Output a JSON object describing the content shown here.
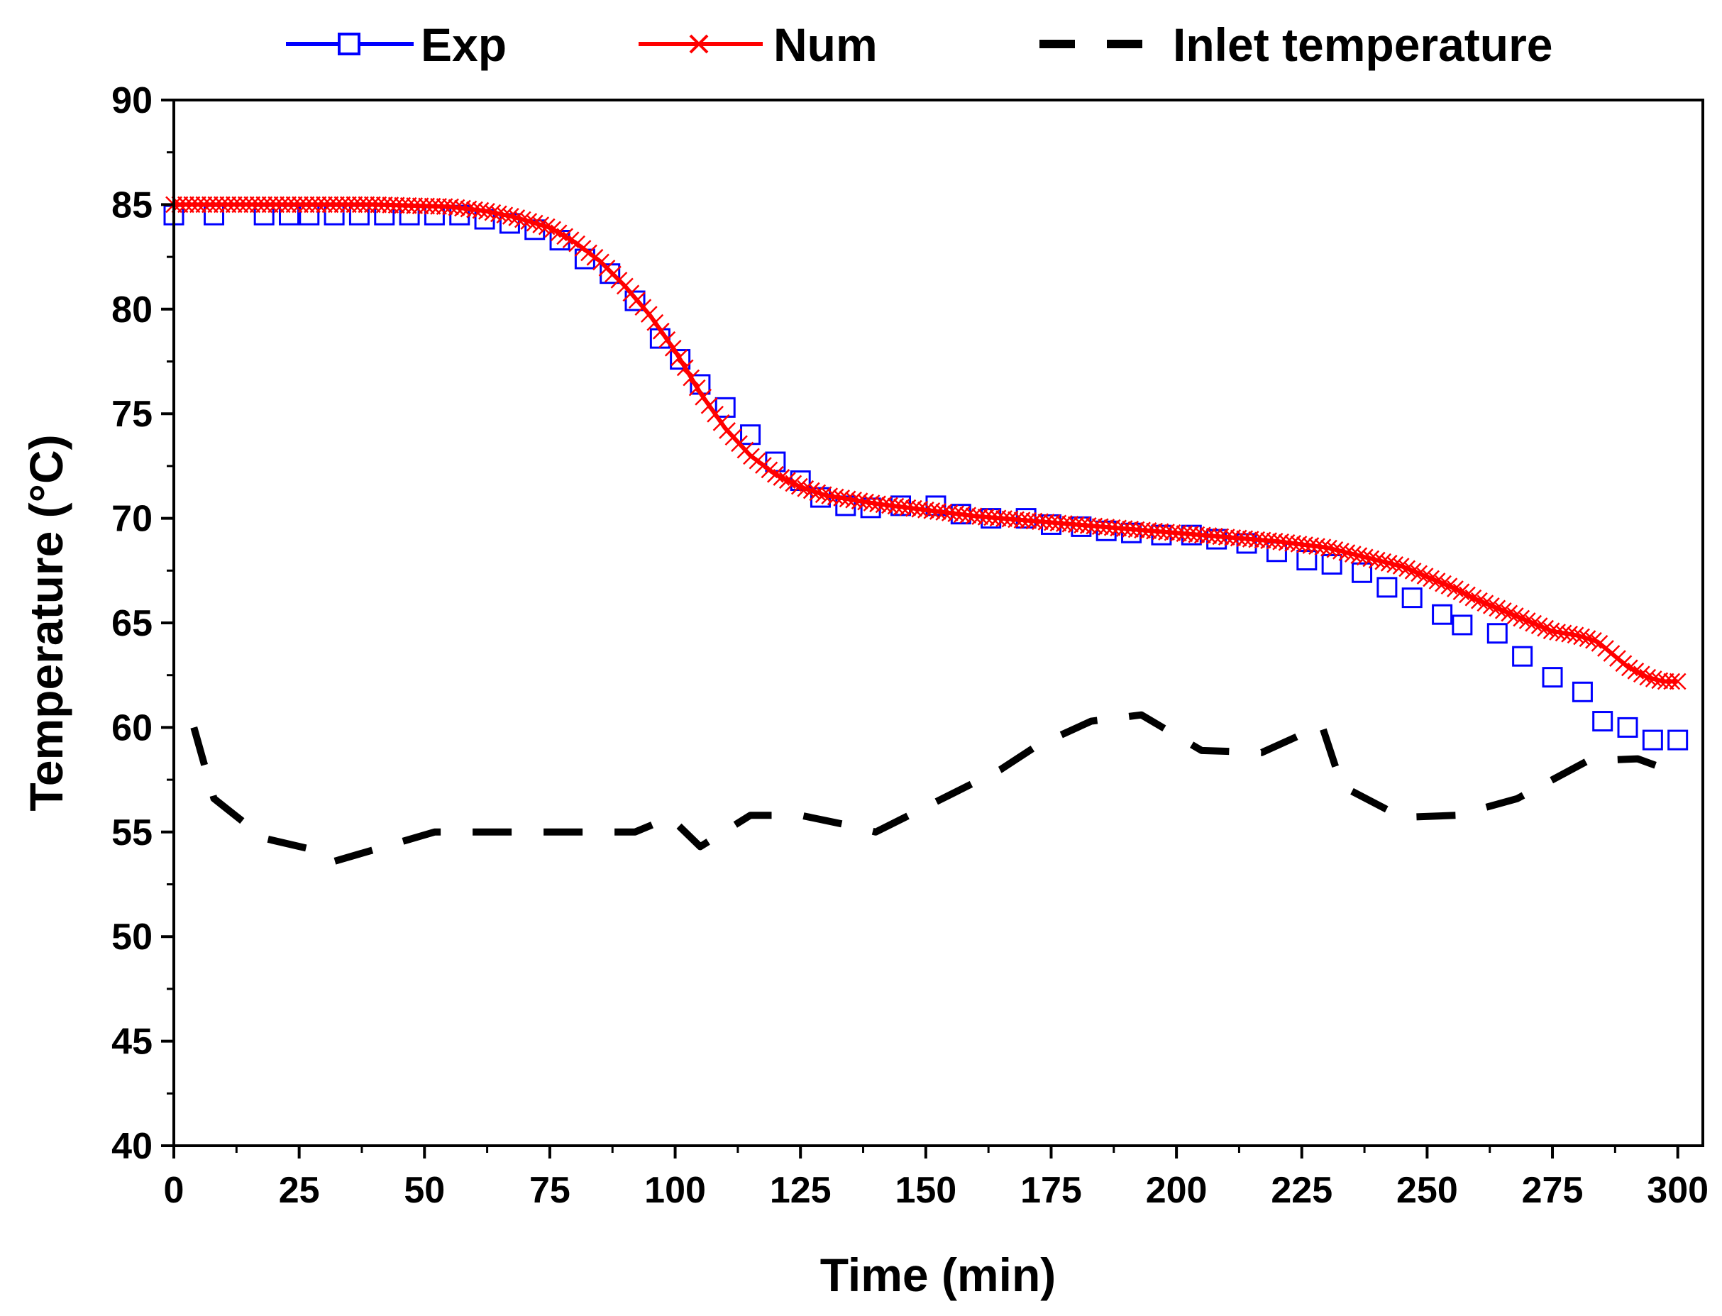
{
  "chart_data": {
    "type": "line",
    "title": "",
    "xlabel": "Time (min)",
    "ylabel": "Temperature (°C)",
    "xlim": [
      0,
      305
    ],
    "ylim": [
      40,
      90
    ],
    "xticks": [
      0,
      25,
      50,
      75,
      100,
      125,
      150,
      175,
      200,
      225,
      250,
      275,
      300
    ],
    "yticks": [
      40,
      45,
      50,
      55,
      60,
      65,
      70,
      75,
      80,
      85,
      90
    ],
    "grid": false,
    "legend_position": "top",
    "colors": {
      "exp": "#0000ff",
      "num": "#ff0000",
      "inlet": "#000000"
    },
    "series": [
      {
        "name": "Exp",
        "style": "markers-open-square",
        "x": [
          0,
          8,
          18,
          23,
          27,
          32,
          37,
          42,
          47,
          52,
          57,
          62,
          67,
          72,
          77,
          82,
          87,
          92,
          97,
          101,
          105,
          110,
          115,
          120,
          125,
          129,
          134,
          139,
          145,
          152,
          157,
          163,
          170,
          175,
          181,
          186,
          191,
          197,
          203,
          208,
          214,
          220,
          226,
          231,
          237,
          242,
          247,
          253,
          257,
          264,
          269,
          275,
          281,
          285,
          290,
          295,
          300
        ],
        "y": [
          84.5,
          84.5,
          84.5,
          84.5,
          84.5,
          84.5,
          84.5,
          84.5,
          84.5,
          84.5,
          84.5,
          84.3,
          84.1,
          83.8,
          83.3,
          82.4,
          81.7,
          80.4,
          78.6,
          77.6,
          76.4,
          75.3,
          74.0,
          72.7,
          71.8,
          71.0,
          70.6,
          70.5,
          70.6,
          70.6,
          70.2,
          70.0,
          70.0,
          69.7,
          69.6,
          69.4,
          69.3,
          69.2,
          69.2,
          69.0,
          68.8,
          68.4,
          68.0,
          67.8,
          67.4,
          66.7,
          66.2,
          65.4,
          64.9,
          64.5,
          63.4,
          62.4,
          61.7,
          60.3,
          60.0,
          59.4,
          59.4
        ]
      },
      {
        "name": "Num",
        "style": "line-with-x-markers",
        "x": [
          0,
          20,
          40,
          55,
          62,
          68,
          75,
          80,
          85,
          90,
          95,
          100,
          105,
          110,
          115,
          120,
          125,
          130,
          140,
          150,
          160,
          170,
          180,
          190,
          200,
          210,
          220,
          230,
          240,
          245,
          250,
          255,
          260,
          265,
          270,
          275,
          280,
          284,
          287,
          290,
          294,
          297,
          300
        ],
        "y": [
          85.0,
          85.0,
          85.0,
          84.9,
          84.7,
          84.4,
          83.9,
          83.2,
          82.3,
          81.1,
          79.7,
          78.0,
          76.0,
          74.3,
          73.0,
          72.1,
          71.5,
          71.1,
          70.7,
          70.4,
          70.1,
          69.9,
          69.7,
          69.5,
          69.3,
          69.1,
          68.9,
          68.6,
          68.0,
          67.7,
          67.2,
          66.7,
          66.1,
          65.6,
          65.1,
          64.6,
          64.4,
          64.1,
          63.5,
          62.9,
          62.4,
          62.2,
          62.2
        ]
      },
      {
        "name": "Inlet temperature",
        "style": "dashed-line",
        "x": [
          4,
          8,
          18,
          27,
          32,
          52,
          67,
          92,
          99,
          105,
          115,
          125,
          135,
          140,
          155,
          165,
          172,
          183,
          193,
          205,
          217,
          229,
          233,
          245,
          256,
          268,
          282,
          292,
          300
        ],
        "y": [
          60.0,
          56.6,
          54.7,
          54.2,
          53.6,
          55.0,
          55.0,
          55.0,
          55.7,
          54.3,
          55.8,
          55.8,
          55.3,
          55.0,
          56.8,
          58.0,
          59.1,
          60.3,
          60.6,
          58.9,
          58.8,
          60.1,
          57.2,
          55.7,
          55.8,
          56.6,
          58.4,
          58.5,
          57.8
        ]
      }
    ]
  }
}
